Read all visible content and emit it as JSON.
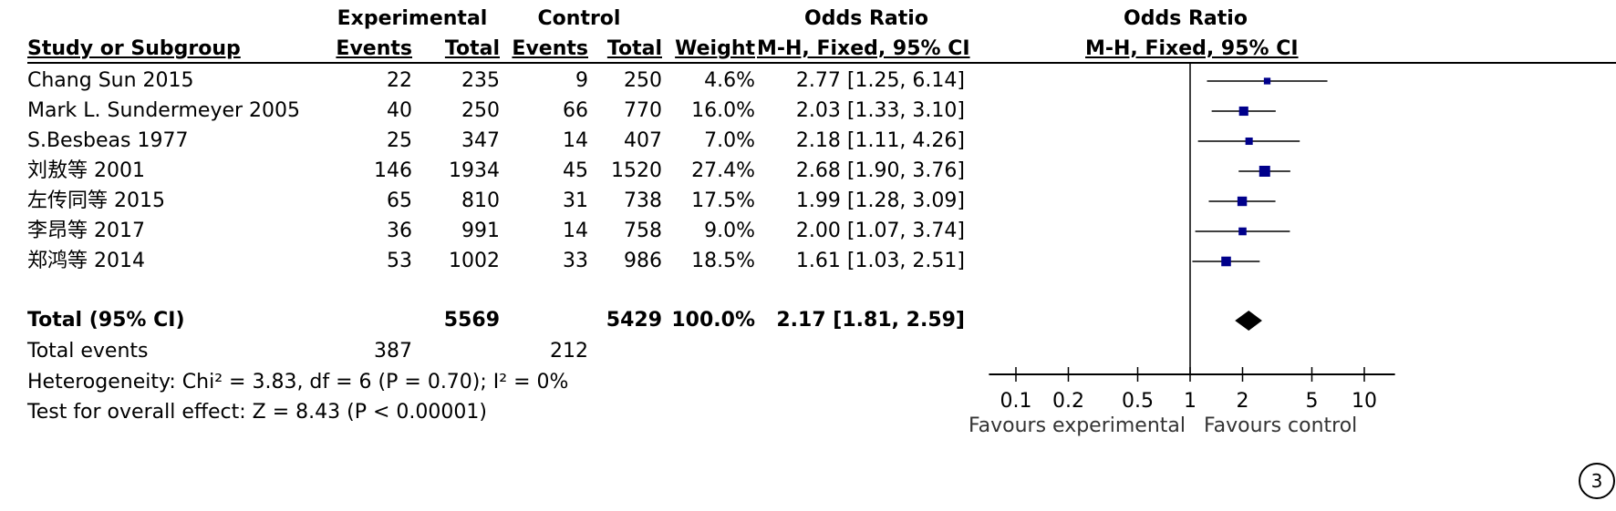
{
  "chart_data": {
    "type": "forest",
    "header": {
      "group1": "Experimental",
      "group2": "Control",
      "or_left": "Odds Ratio",
      "or_right": "Odds Ratio",
      "study": "Study or Subgroup",
      "events1": "Events",
      "total1": "Total",
      "events2": "Events",
      "total2": "Total",
      "weight": "Weight",
      "method_left": "M-H, Fixed, 95% CI",
      "method_right": "M-H, Fixed, 95% CI"
    },
    "studies": [
      {
        "name": "Chang Sun 2015",
        "e1": "22",
        "t1": "235",
        "e2": "9",
        "t2": "250",
        "weight": "4.6%",
        "ci": "2.77 [1.25, 6.14]",
        "or": 2.77,
        "lo": 1.25,
        "hi": 6.14,
        "w": 4.6
      },
      {
        "name": "Mark L. Sundermeyer 2005",
        "e1": "40",
        "t1": "250",
        "e2": "66",
        "t2": "770",
        "weight": "16.0%",
        "ci": "2.03 [1.33, 3.10]",
        "or": 2.03,
        "lo": 1.33,
        "hi": 3.1,
        "w": 16.0
      },
      {
        "name": "S.Besbeas 1977",
        "e1": "25",
        "t1": "347",
        "e2": "14",
        "t2": "407",
        "weight": "7.0%",
        "ci": "2.18 [1.11, 4.26]",
        "or": 2.18,
        "lo": 1.11,
        "hi": 4.26,
        "w": 7.0
      },
      {
        "name": "刘敖等 2001",
        "e1": "146",
        "t1": "1934",
        "e2": "45",
        "t2": "1520",
        "weight": "27.4%",
        "ci": "2.68 [1.90, 3.76]",
        "or": 2.68,
        "lo": 1.9,
        "hi": 3.76,
        "w": 27.4
      },
      {
        "name": "左传同等 2015",
        "e1": "65",
        "t1": "810",
        "e2": "31",
        "t2": "738",
        "weight": "17.5%",
        "ci": "1.99 [1.28, 3.09]",
        "or": 1.99,
        "lo": 1.28,
        "hi": 3.09,
        "w": 17.5
      },
      {
        "name": "李昂等 2017",
        "e1": "36",
        "t1": "991",
        "e2": "14",
        "t2": "758",
        "weight": "9.0%",
        "ci": "2.00 [1.07, 3.74]",
        "or": 2.0,
        "lo": 1.07,
        "hi": 3.74,
        "w": 9.0
      },
      {
        "name": "郑鸿等 2014",
        "e1": "53",
        "t1": "1002",
        "e2": "33",
        "t2": "986",
        "weight": "18.5%",
        "ci": "1.61 [1.03, 2.51]",
        "or": 1.61,
        "lo": 1.03,
        "hi": 2.51,
        "w": 18.5
      }
    ],
    "total": {
      "label": "Total (95% CI)",
      "t1": "5569",
      "t2": "5429",
      "weight": "100.0%",
      "ci": "2.17 [1.81, 2.59]",
      "or": 2.17,
      "lo": 1.81,
      "hi": 2.59
    },
    "events": {
      "label": "Total events",
      "e1": "387",
      "e2": "212"
    },
    "heterogeneity": "Heterogeneity: Chi² = 3.83, df = 6 (P = 0.70); I² = 0%",
    "overall_effect": "Test for overall effect: Z = 8.43 (P < 0.00001)",
    "axis": {
      "scale": "log",
      "ticks": [
        0.1,
        0.2,
        0.5,
        1,
        2,
        5,
        10
      ],
      "tick_labels": [
        "0.1",
        "0.2",
        "0.5",
        "1",
        "2",
        "5",
        "10"
      ],
      "range": [
        0.07,
        15
      ]
    },
    "favours_left": "Favours experimental",
    "favours_right": "Favours control",
    "marker_color": "#00008b",
    "figure_number": "3"
  }
}
